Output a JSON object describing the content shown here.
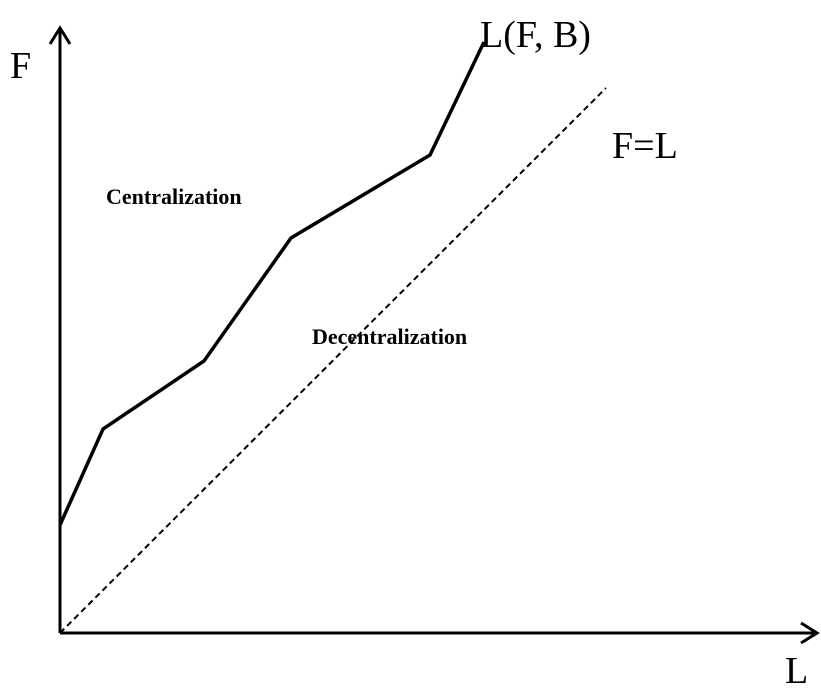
{
  "axes": {
    "y_label": "F",
    "x_label": "L"
  },
  "curves": {
    "solid_label": "L(F, B)",
    "dashed_label": "F=L"
  },
  "regions": {
    "upper": "Centralization",
    "lower": "Decentralization"
  }
}
